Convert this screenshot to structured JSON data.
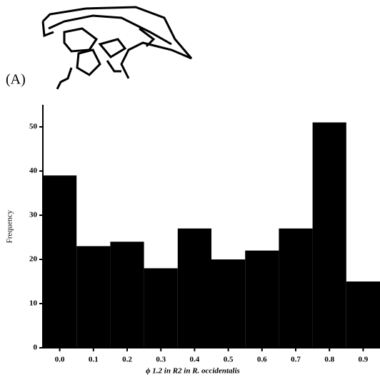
{
  "chart_data": {
    "type": "bar",
    "panel_label": "(A)",
    "x_label": "ϕ 1.2 in R2 in R. occidentalis",
    "y_label": "Frequency",
    "categories": [
      "0.0",
      "0.1",
      "0.2",
      "0.3",
      "0.4",
      "0.5",
      "0.6",
      "0.7",
      "0.8",
      "0.9"
    ],
    "values": [
      39,
      23,
      24,
      18,
      27,
      20,
      22,
      27,
      51,
      15
    ],
    "color": "#000000",
    "ylim": [
      0,
      55
    ],
    "yticks": [
      0,
      10,
      20,
      30,
      40,
      50
    ]
  }
}
